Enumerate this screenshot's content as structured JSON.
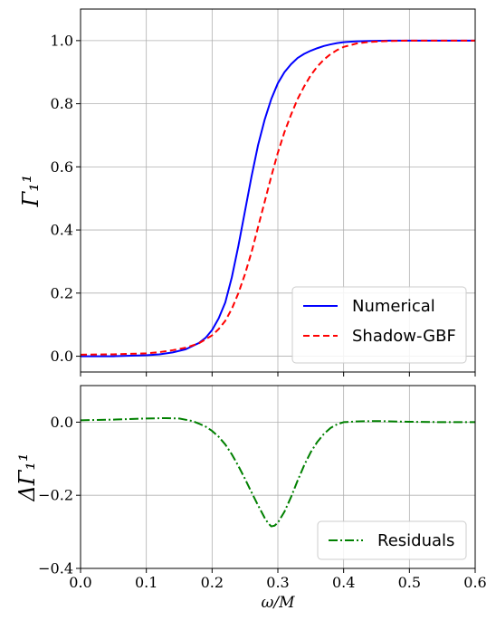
{
  "chart_data": [
    {
      "type": "line",
      "xlim": [
        0.0,
        0.6
      ],
      "ylim": [
        -0.05,
        1.1
      ],
      "xticks": [
        0.0,
        0.1,
        0.2,
        0.3,
        0.4,
        0.5,
        0.6
      ],
      "yticks": [
        0.0,
        0.2,
        0.4,
        0.6,
        0.8,
        1.0
      ],
      "ytick_labels": [
        "0.0",
        "0.2",
        "0.4",
        "0.6",
        "0.8",
        "1.0"
      ],
      "ylabel": "Γ₁¹",
      "grid": true,
      "legend": "lower-right",
      "series": [
        {
          "name": "Numerical",
          "color": "#0000ff",
          "style": "solid",
          "x": [
            0.0,
            0.05,
            0.1,
            0.12,
            0.14,
            0.16,
            0.18,
            0.19,
            0.2,
            0.21,
            0.22,
            0.23,
            0.24,
            0.25,
            0.26,
            0.27,
            0.28,
            0.29,
            0.3,
            0.31,
            0.32,
            0.33,
            0.34,
            0.35,
            0.36,
            0.37,
            0.38,
            0.39,
            0.4,
            0.42,
            0.44,
            0.47,
            0.5,
            0.55,
            0.6
          ],
          "y": [
            0.0,
            0.0,
            0.003,
            0.006,
            0.012,
            0.022,
            0.042,
            0.058,
            0.083,
            0.12,
            0.17,
            0.25,
            0.35,
            0.46,
            0.57,
            0.67,
            0.75,
            0.815,
            0.865,
            0.9,
            0.925,
            0.945,
            0.958,
            0.968,
            0.976,
            0.983,
            0.988,
            0.992,
            0.995,
            0.998,
            0.999,
            1.0,
            1.0,
            1.0,
            1.0
          ]
        },
        {
          "name": "Shadow-GBF",
          "color": "#ff0000",
          "style": "dashed",
          "x": [
            0.0,
            0.05,
            0.1,
            0.12,
            0.14,
            0.16,
            0.18,
            0.2,
            0.21,
            0.22,
            0.23,
            0.24,
            0.25,
            0.26,
            0.27,
            0.28,
            0.29,
            0.3,
            0.31,
            0.32,
            0.33,
            0.34,
            0.35,
            0.36,
            0.37,
            0.38,
            0.39,
            0.4,
            0.42,
            0.44,
            0.47,
            0.5,
            0.55,
            0.6
          ],
          "y": [
            0.005,
            0.006,
            0.009,
            0.013,
            0.019,
            0.027,
            0.041,
            0.066,
            0.086,
            0.112,
            0.15,
            0.2,
            0.26,
            0.33,
            0.41,
            0.49,
            0.57,
            0.645,
            0.71,
            0.765,
            0.815,
            0.855,
            0.89,
            0.918,
            0.94,
            0.957,
            0.97,
            0.98,
            0.991,
            0.996,
            0.999,
            1.0,
            1.0,
            1.0
          ]
        }
      ]
    },
    {
      "type": "line",
      "xlim": [
        0.0,
        0.6
      ],
      "ylim": [
        -0.4,
        0.1
      ],
      "xticks": [
        0.0,
        0.1,
        0.2,
        0.3,
        0.4,
        0.5,
        0.6
      ],
      "xtick_labels": [
        "0.0",
        "0.1",
        "0.2",
        "0.3",
        "0.4",
        "0.5",
        "0.6"
      ],
      "yticks": [
        -0.4,
        -0.2,
        0.0
      ],
      "ytick_labels": [
        "−0.4",
        "−0.2",
        "0.0"
      ],
      "xlabel": "ω/M",
      "ylabel": "ΔΓ₁¹",
      "grid": true,
      "legend": "lower-right",
      "series": [
        {
          "name": "Residuals",
          "color": "#008000",
          "style": "dashdot",
          "x": [
            0.0,
            0.05,
            0.1,
            0.13,
            0.15,
            0.17,
            0.18,
            0.19,
            0.2,
            0.21,
            0.22,
            0.23,
            0.24,
            0.25,
            0.26,
            0.27,
            0.28,
            0.285,
            0.29,
            0.295,
            0.3,
            0.31,
            0.32,
            0.33,
            0.34,
            0.35,
            0.36,
            0.37,
            0.38,
            0.39,
            0.4,
            0.42,
            0.45,
            0.5,
            0.55,
            0.6
          ],
          "y": [
            0.005,
            0.007,
            0.01,
            0.011,
            0.01,
            0.003,
            -0.004,
            -0.012,
            -0.024,
            -0.04,
            -0.061,
            -0.088,
            -0.12,
            -0.155,
            -0.192,
            -0.228,
            -0.262,
            -0.276,
            -0.285,
            -0.283,
            -0.275,
            -0.245,
            -0.205,
            -0.16,
            -0.118,
            -0.082,
            -0.054,
            -0.032,
            -0.016,
            -0.006,
            0.0,
            0.002,
            0.003,
            0.001,
            0.0,
            0.0
          ]
        }
      ]
    }
  ]
}
